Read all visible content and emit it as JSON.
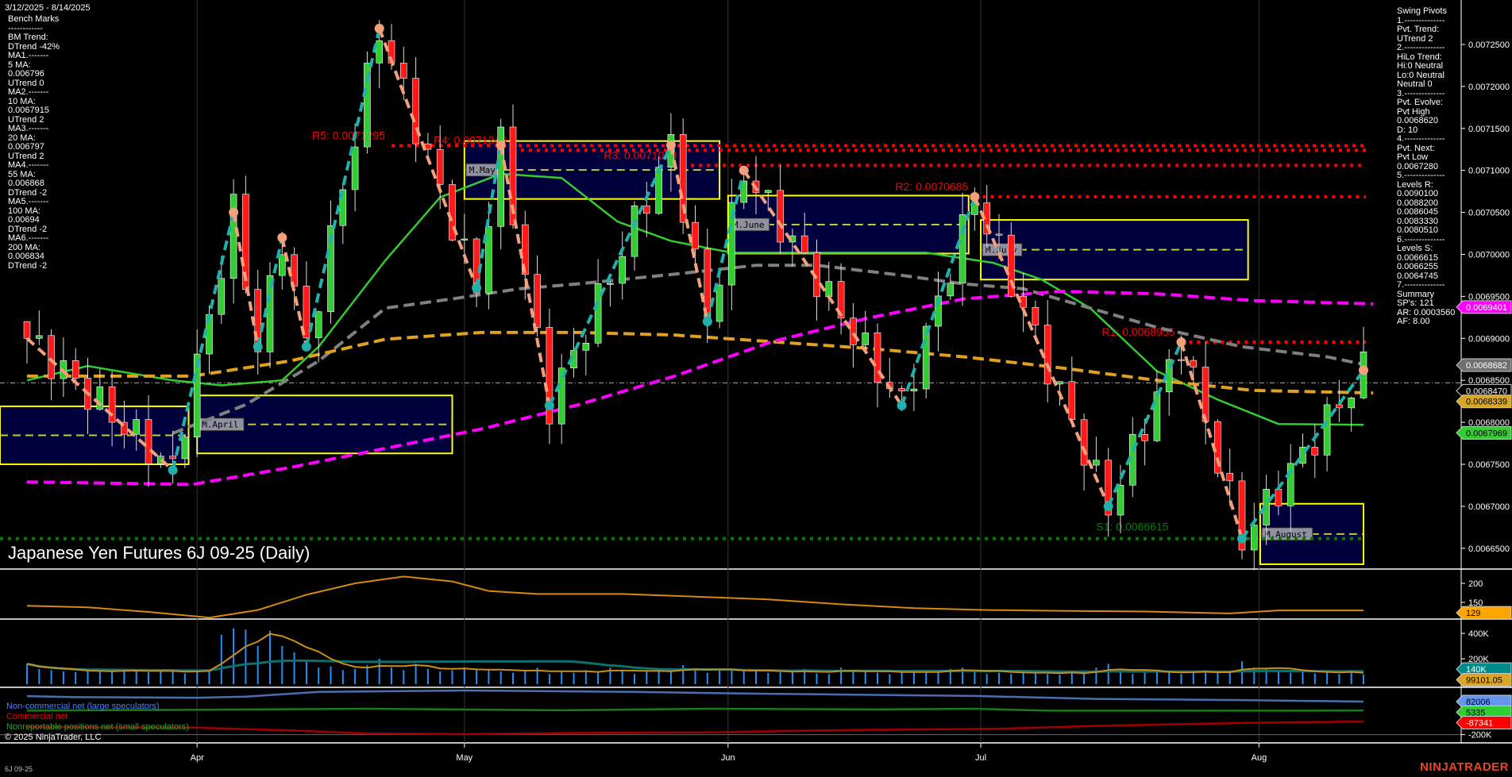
{
  "header": {
    "date_range": "3/12/2025 - 8/14/2025",
    "title": "Japanese Yen Futures 6J 09-25 (Daily)",
    "symbol": "6J 09-25",
    "copyright": "© 2025 NinjaTrader, LLC",
    "brand": "NINJATRADER"
  },
  "bench_marks": [
    "Bench Marks",
    "------------",
    "BM Trend:",
    "DTrend -42%",
    "MA1.-------",
    "5 MA:",
    "0.006796",
    "UTrend 0",
    "MA2.-------",
    "10 MA:",
    "0.0067915",
    "UTrend 2",
    "MA3.-------",
    "20 MA:",
    "0.006797",
    "UTrend 2",
    "MA4.-------",
    "55 MA:",
    "0.006868",
    "DTrend -2",
    "MA5.-------",
    "100 MA:",
    "0.00694",
    "DTrend -2",
    "MA6.-------",
    "200 MA:",
    "0.006834",
    "DTrend -2"
  ],
  "swing_pivots": [
    "Swing Pivots",
    "1.--------------",
    "Pvt. Trend:",
    "UTrend 2",
    "2.--------------",
    "HiLo Trend:",
    "Hi:0 Neutral",
    "Lo:0 Neutral",
    "Neutral 0",
    "3.--------------",
    "Pvt. Evolve:",
    "Pvt High",
    "0.0068620",
    "D: 10",
    "4.--------------",
    "Pvt. Next:",
    "Pvt Low",
    "0.0067280",
    "5.--------------",
    "Levels R:",
    "0.0090100",
    "0.0088200",
    "0.0086045",
    "0.0083330",
    "0.0080510",
    "6.--------------",
    "Levels S:",
    "0.0066615",
    "0.0066255",
    "0.0064745",
    "7.--------------",
    "Summary",
    "SP's: 121",
    "AR: 0.0003560",
    "AF: 8.00"
  ],
  "colors": {
    "background": "#000000",
    "up_candle": "#33cc33",
    "down_candle": "#ff1a1a",
    "ma20": "#33cc33",
    "ma55": "#808080",
    "ma100": "#ff00ff",
    "ma200": "#e0a020",
    "swing_up": "#20b2aa",
    "swing_down": "#f4a07a",
    "resistance": "#ff0000",
    "support": "#008000",
    "month_box_fill": "#00003c",
    "month_box_border": "#ffff00",
    "volume_bar": "#1e90ff",
    "cot_noncommercial": "#4a6fb0",
    "cot_commercial": "#a00000",
    "cot_nonreportable": "#1a7a1a"
  },
  "chart_data": [
    {
      "type": "candlestick",
      "title": "Japanese Yen Futures 6J 09-25 (Daily)",
      "x_tick_labels": [
        {
          "label": "Apr",
          "bar": 14
        },
        {
          "label": "May",
          "bar": 36
        },
        {
          "label": "Jun",
          "bar": 57.7
        },
        {
          "label": "Jul",
          "bar": 78.5
        },
        {
          "label": "Aug",
          "bar": 101.4
        }
      ],
      "bars": 111,
      "ylim": [
        0.00663,
        0.00729
      ],
      "y_ticks": [
        "0.0072500",
        "0.0072000",
        "0.0071500",
        "0.0071000",
        "0.0070500",
        "0.0070000",
        "0.0069500",
        "0.0069000",
        "0.0068500",
        "0.0068000",
        "0.0067500",
        "0.0067000",
        "0.0066500"
      ],
      "swing_pivots": [
        {
          "bar": 0,
          "price": 0.0069
        },
        {
          "bar": 12,
          "price": 0.006743,
          "type": "low"
        },
        {
          "bar": 17,
          "price": 0.00705,
          "type": "high"
        },
        {
          "bar": 19,
          "price": 0.00689,
          "type": "low"
        },
        {
          "bar": 21,
          "price": 0.00702,
          "type": "high"
        },
        {
          "bar": 23,
          "price": 0.00689,
          "type": "low"
        },
        {
          "bar": 29,
          "price": 0.007269,
          "type": "high"
        },
        {
          "bar": 37,
          "price": 0.00696,
          "type": "low"
        },
        {
          "bar": 39,
          "price": 0.00713,
          "type": "high"
        },
        {
          "bar": 43,
          "price": 0.00682,
          "type": "low"
        },
        {
          "bar": 53,
          "price": 0.00713,
          "type": "high"
        },
        {
          "bar": 56,
          "price": 0.00692,
          "type": "low"
        },
        {
          "bar": 59,
          "price": 0.0071,
          "type": "high"
        },
        {
          "bar": 72,
          "price": 0.00682,
          "type": "low"
        },
        {
          "bar": 78,
          "price": 0.0070685,
          "type": "high"
        },
        {
          "bar": 89,
          "price": 0.0067,
          "type": "low"
        },
        {
          "bar": 95,
          "price": 0.0068955,
          "type": "high"
        },
        {
          "bar": 100,
          "price": 0.0066615,
          "type": "low"
        },
        {
          "bar": 110,
          "price": 0.006862,
          "type": "high"
        }
      ],
      "moving_averages": [
        {
          "name": "20 MA",
          "color_key": "ma20",
          "dash": false,
          "points": [
            [
              0,
              0.00685
            ],
            [
              5,
              0.006867
            ],
            [
              12,
              0.00685
            ],
            [
              16,
              0.006844
            ],
            [
              21,
              0.00685
            ],
            [
              24,
              0.00689
            ],
            [
              29.5,
              0.006993
            ],
            [
              34,
              0.007068
            ],
            [
              39,
              0.007096
            ],
            [
              44,
              0.007091
            ],
            [
              48.6,
              0.007039
            ],
            [
              53,
              0.007016
            ],
            [
              58,
              0.007002
            ],
            [
              74,
              0.007002
            ],
            [
              79.5,
              0.00699
            ],
            [
              83.5,
              0.00697
            ],
            [
              87.5,
              0.006936
            ],
            [
              93,
              0.006861
            ],
            [
              98,
              0.006827
            ],
            [
              103,
              0.006798
            ],
            [
              110,
              0.006797
            ]
          ]
        },
        {
          "name": "55 MA",
          "color_key": "ma55",
          "dash": true,
          "points": [
            [
              12,
              0.006787
            ],
            [
              18,
              0.006821
            ],
            [
              24,
              0.006873
            ],
            [
              29.5,
              0.006936
            ],
            [
              35,
              0.006947
            ],
            [
              40.5,
              0.006959
            ],
            [
              45.5,
              0.006965
            ],
            [
              53,
              0.006976
            ],
            [
              60,
              0.006987
            ],
            [
              65,
              0.006987
            ],
            [
              71.5,
              0.006976
            ],
            [
              77,
              0.006965
            ],
            [
              82,
              0.006959
            ],
            [
              87.5,
              0.006936
            ],
            [
              93,
              0.006913
            ],
            [
              100,
              0.00689
            ],
            [
              107,
              0.006878
            ],
            [
              110,
              0.006869
            ]
          ]
        },
        {
          "name": "200 MA",
          "color_key": "ma200",
          "dash": true,
          "points": [
            [
              0,
              0.006855
            ],
            [
              13.6,
              0.006855
            ],
            [
              21.6,
              0.006873
            ],
            [
              29.5,
              0.006899
            ],
            [
              37.4,
              0.006907
            ],
            [
              45.4,
              0.006907
            ],
            [
              53.3,
              0.006904
            ],
            [
              61.3,
              0.006896
            ],
            [
              69.2,
              0.006888
            ],
            [
              77.1,
              0.006878
            ],
            [
              85,
              0.006865
            ],
            [
              93,
              0.00685
            ],
            [
              100.9,
              0.006838
            ],
            [
              110.8,
              0.006835
            ]
          ]
        },
        {
          "name": "100 MA",
          "color_key": "ma100",
          "dash": true,
          "points": [
            [
              0,
              0.006729
            ],
            [
              13.6,
              0.006726
            ],
            [
              21.6,
              0.006746
            ],
            [
              29.5,
              0.006769
            ],
            [
              37.4,
              0.006792
            ],
            [
              45.4,
              0.006821
            ],
            [
              53.3,
              0.006855
            ],
            [
              61.3,
              0.006896
            ],
            [
              69.2,
              0.006924
            ],
            [
              77.1,
              0.006947
            ],
            [
              85,
              0.006956
            ],
            [
              93,
              0.006953
            ],
            [
              100.9,
              0.006945
            ],
            [
              110.8,
              0.006941
            ]
          ]
        }
      ],
      "month_boxes": [
        {
          "label": "",
          "start": -2.5,
          "end": 13.3,
          "high": 0.006819,
          "low": 0.00675
        },
        {
          "label": "M.April",
          "start": 14,
          "end": 35,
          "high": 0.006832,
          "low": 0.006763
        },
        {
          "label": "M.May",
          "start": 36,
          "end": 57,
          "high": 0.007135,
          "low": 0.007066
        },
        {
          "label": "M.June",
          "start": 57.7,
          "end": 77.5,
          "high": 0.00707,
          "low": 0.007001
        },
        {
          "label": "M.July",
          "start": 78.5,
          "end": 100.5,
          "high": 0.007041,
          "low": 0.00697
        },
        {
          "label": "M.August",
          "start": 101.5,
          "end": 110,
          "high": 0.006703,
          "low": 0.006631
        }
      ],
      "levels": [
        {
          "label": "R5: 0.0071295",
          "price": 0.0071295,
          "from": 30,
          "kind": "resistance"
        },
        {
          "label": "R4: 0.0071240",
          "price": 0.007124,
          "from": 40,
          "kind": "resistance"
        },
        {
          "label": "R3: 0.0071060",
          "price": 0.007106,
          "from": 54,
          "kind": "resistance"
        },
        {
          "label": "R2: 0.0070685",
          "price": 0.0070685,
          "from": 78,
          "kind": "resistance"
        },
        {
          "label": "R1: 0.0068955",
          "price": 0.0068955,
          "from": 95,
          "kind": "resistance"
        },
        {
          "label": "S1: 0.0066615",
          "price": 0.0066615,
          "from": 0,
          "kind": "support"
        }
      ],
      "price_tags": [
        {
          "value": "0.0069401",
          "price": 0.0069401,
          "bg": "#ff00ff",
          "fg": "#ffffff"
        },
        {
          "value": "0.0068682",
          "price": 0.0068682,
          "bg": "#707070",
          "fg": "#ffffff"
        },
        {
          "value": "0.0068470",
          "price": 0.006847,
          "bg": "#000000",
          "fg": "#ffffff"
        },
        {
          "value": "0.0068339",
          "price": 0.0068339,
          "bg": "#daa520",
          "fg": "#000000"
        },
        {
          "value": "0.0067969",
          "price": 0.0067969,
          "bg": "#33cc33",
          "fg": "#000000"
        }
      ]
    },
    {
      "type": "line",
      "y_ticks": [
        "200",
        "150"
      ],
      "ylim": [
        100,
        230
      ],
      "series": [
        {
          "color": "#d48a10",
          "points": [
            [
              0,
              141
            ],
            [
              5,
              137
            ],
            [
              10,
              125
            ],
            [
              15,
              110
            ],
            [
              19,
              130
            ],
            [
              23,
              170
            ],
            [
              27,
              200
            ],
            [
              31,
              218
            ],
            [
              35,
              205
            ],
            [
              38,
              180
            ],
            [
              42,
              172
            ],
            [
              49,
              172
            ],
            [
              55,
              165
            ],
            [
              61,
              158
            ],
            [
              67,
              145
            ],
            [
              73,
              135
            ],
            [
              79,
              130
            ],
            [
              85,
              128
            ],
            [
              92,
              126
            ],
            [
              99,
              121
            ],
            [
              103,
              129
            ],
            [
              110,
              129
            ]
          ]
        }
      ],
      "tag": {
        "value": "129",
        "bg": "#ffa500",
        "fg": "#000000"
      }
    },
    {
      "type": "bar",
      "y_ticks": [
        "400K",
        "200K"
      ],
      "ylim": [
        0,
        450000
      ],
      "values_k": [
        160,
        120,
        110,
        100,
        95,
        105,
        110,
        100,
        115,
        100,
        95,
        110,
        100,
        85,
        110,
        115,
        390,
        440,
        430,
        300,
        420,
        300,
        250,
        180,
        130,
        140,
        110,
        120,
        150,
        200,
        130,
        110,
        160,
        120,
        100,
        110,
        130,
        120,
        110,
        100,
        90,
        110,
        130,
        80,
        100,
        90,
        110,
        100,
        130,
        110,
        80,
        100,
        100,
        120,
        150,
        110,
        90,
        110,
        120,
        110,
        100,
        90,
        95,
        100,
        120,
        85,
        80,
        130,
        110,
        100,
        90,
        80,
        95,
        110,
        100,
        90,
        120,
        130,
        100,
        80,
        90,
        80,
        110,
        90,
        80,
        75,
        100,
        90,
        130,
        160,
        100,
        80,
        90,
        110,
        100,
        80,
        90,
        110,
        90,
        100,
        180,
        130,
        120,
        100,
        90,
        110,
        85,
        95,
        80,
        110,
        75
      ],
      "tags": [
        {
          "value": "140K",
          "bg": "#008b8b",
          "fg": "#ffffff"
        },
        {
          "value": "99101.05",
          "bg": "#daa520",
          "fg": "#000000"
        }
      ]
    },
    {
      "type": "line",
      "y_ticks": [
        "-200K"
      ],
      "ylim": [
        -220000,
        200000
      ],
      "series": [
        {
          "name": "Non-commercial net (large speculators)",
          "color": "#4a6fb0",
          "label_color": "#4a80ff",
          "points": [
            [
              0,
              129000
            ],
            [
              4,
              120000
            ],
            [
              14,
              115000
            ],
            [
              18,
              125000
            ],
            [
              24,
              165000
            ],
            [
              36,
              177000
            ],
            [
              50,
              165000
            ],
            [
              60,
              150000
            ],
            [
              78,
              130000
            ],
            [
              88,
              105000
            ],
            [
              100,
              95000
            ],
            [
              110,
              82006
            ]
          ]
        },
        {
          "name": "Commercial net",
          "color": "#a00000",
          "label_color": "#ff0000",
          "points": [
            [
              0,
              -135000
            ],
            [
              14,
              -140000
            ],
            [
              22,
              -165000
            ],
            [
              28,
              -190000
            ],
            [
              36,
              -196000
            ],
            [
              46,
              -185000
            ],
            [
              56,
              -180000
            ],
            [
              68,
              -160000
            ],
            [
              80,
              -150000
            ],
            [
              88,
              -125000
            ],
            [
              100,
              -100000
            ],
            [
              110,
              -87341
            ]
          ]
        },
        {
          "name": "Nonreportable positions net (small speculators)",
          "color": "#1a7a1a",
          "label_color": "#22aa22",
          "points": [
            [
              0,
              5000
            ],
            [
              14,
              12000
            ],
            [
              28,
              21000
            ],
            [
              44,
              8000
            ],
            [
              56,
              21000
            ],
            [
              70,
              15000
            ],
            [
              78,
              21000
            ],
            [
              84,
              5000
            ],
            [
              110,
              5335
            ]
          ]
        }
      ],
      "tags": [
        {
          "value": "82006",
          "bg": "#6495ed",
          "fg": "#000000"
        },
        {
          "value": "5335",
          "bg": "#32cd32",
          "fg": "#000000"
        },
        {
          "value": "-87341",
          "bg": "#ff0000",
          "fg": "#ffffff"
        }
      ]
    }
  ]
}
